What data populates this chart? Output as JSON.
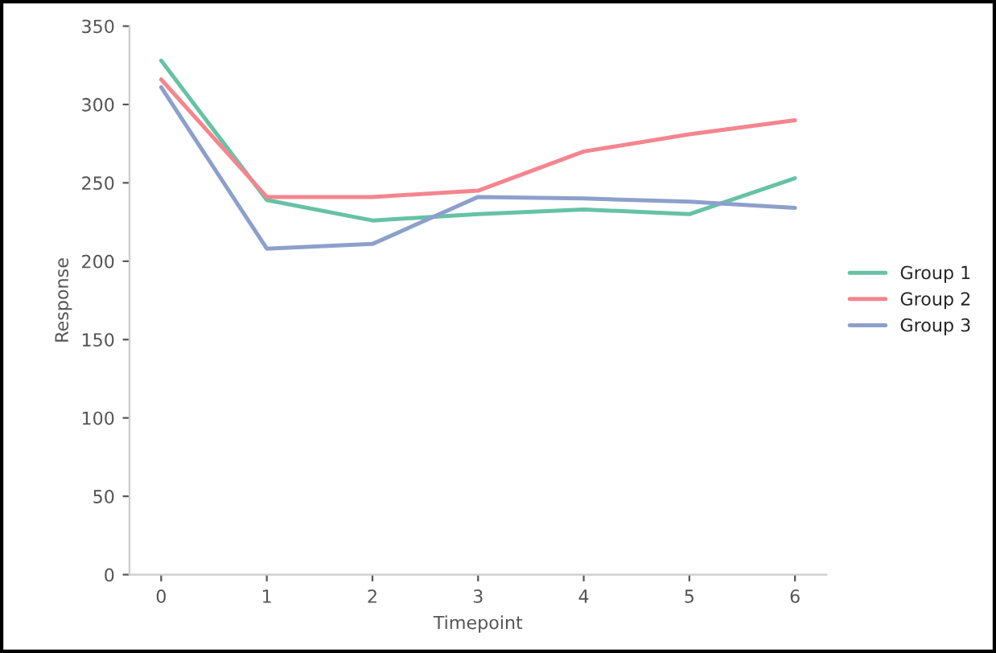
{
  "chart_data": {
    "type": "line",
    "xlabel": "Timepoint",
    "ylabel": "Response",
    "x": [
      0,
      1,
      2,
      3,
      4,
      5,
      6
    ],
    "series": [
      {
        "name": "Group 1",
        "color": "#66c2a5",
        "values": [
          328,
          239,
          226,
          230,
          233,
          230,
          253
        ]
      },
      {
        "name": "Group 2",
        "color": "#f4858e",
        "values": [
          316,
          241,
          241,
          245,
          270,
          281,
          290
        ]
      },
      {
        "name": "Group 3",
        "color": "#8da0cb",
        "values": [
          311,
          208,
          211,
          241,
          240,
          238,
          234
        ]
      }
    ],
    "xlim": [
      -0.3,
      6.3
    ],
    "xticks": [
      0,
      1,
      2,
      3,
      4,
      5,
      6
    ],
    "ylim": [
      0,
      350
    ],
    "yticks": [
      0,
      50,
      100,
      150,
      200,
      250,
      300,
      350
    ],
    "grid": false,
    "legend": "right",
    "marker": "none",
    "line_style": "solid"
  }
}
